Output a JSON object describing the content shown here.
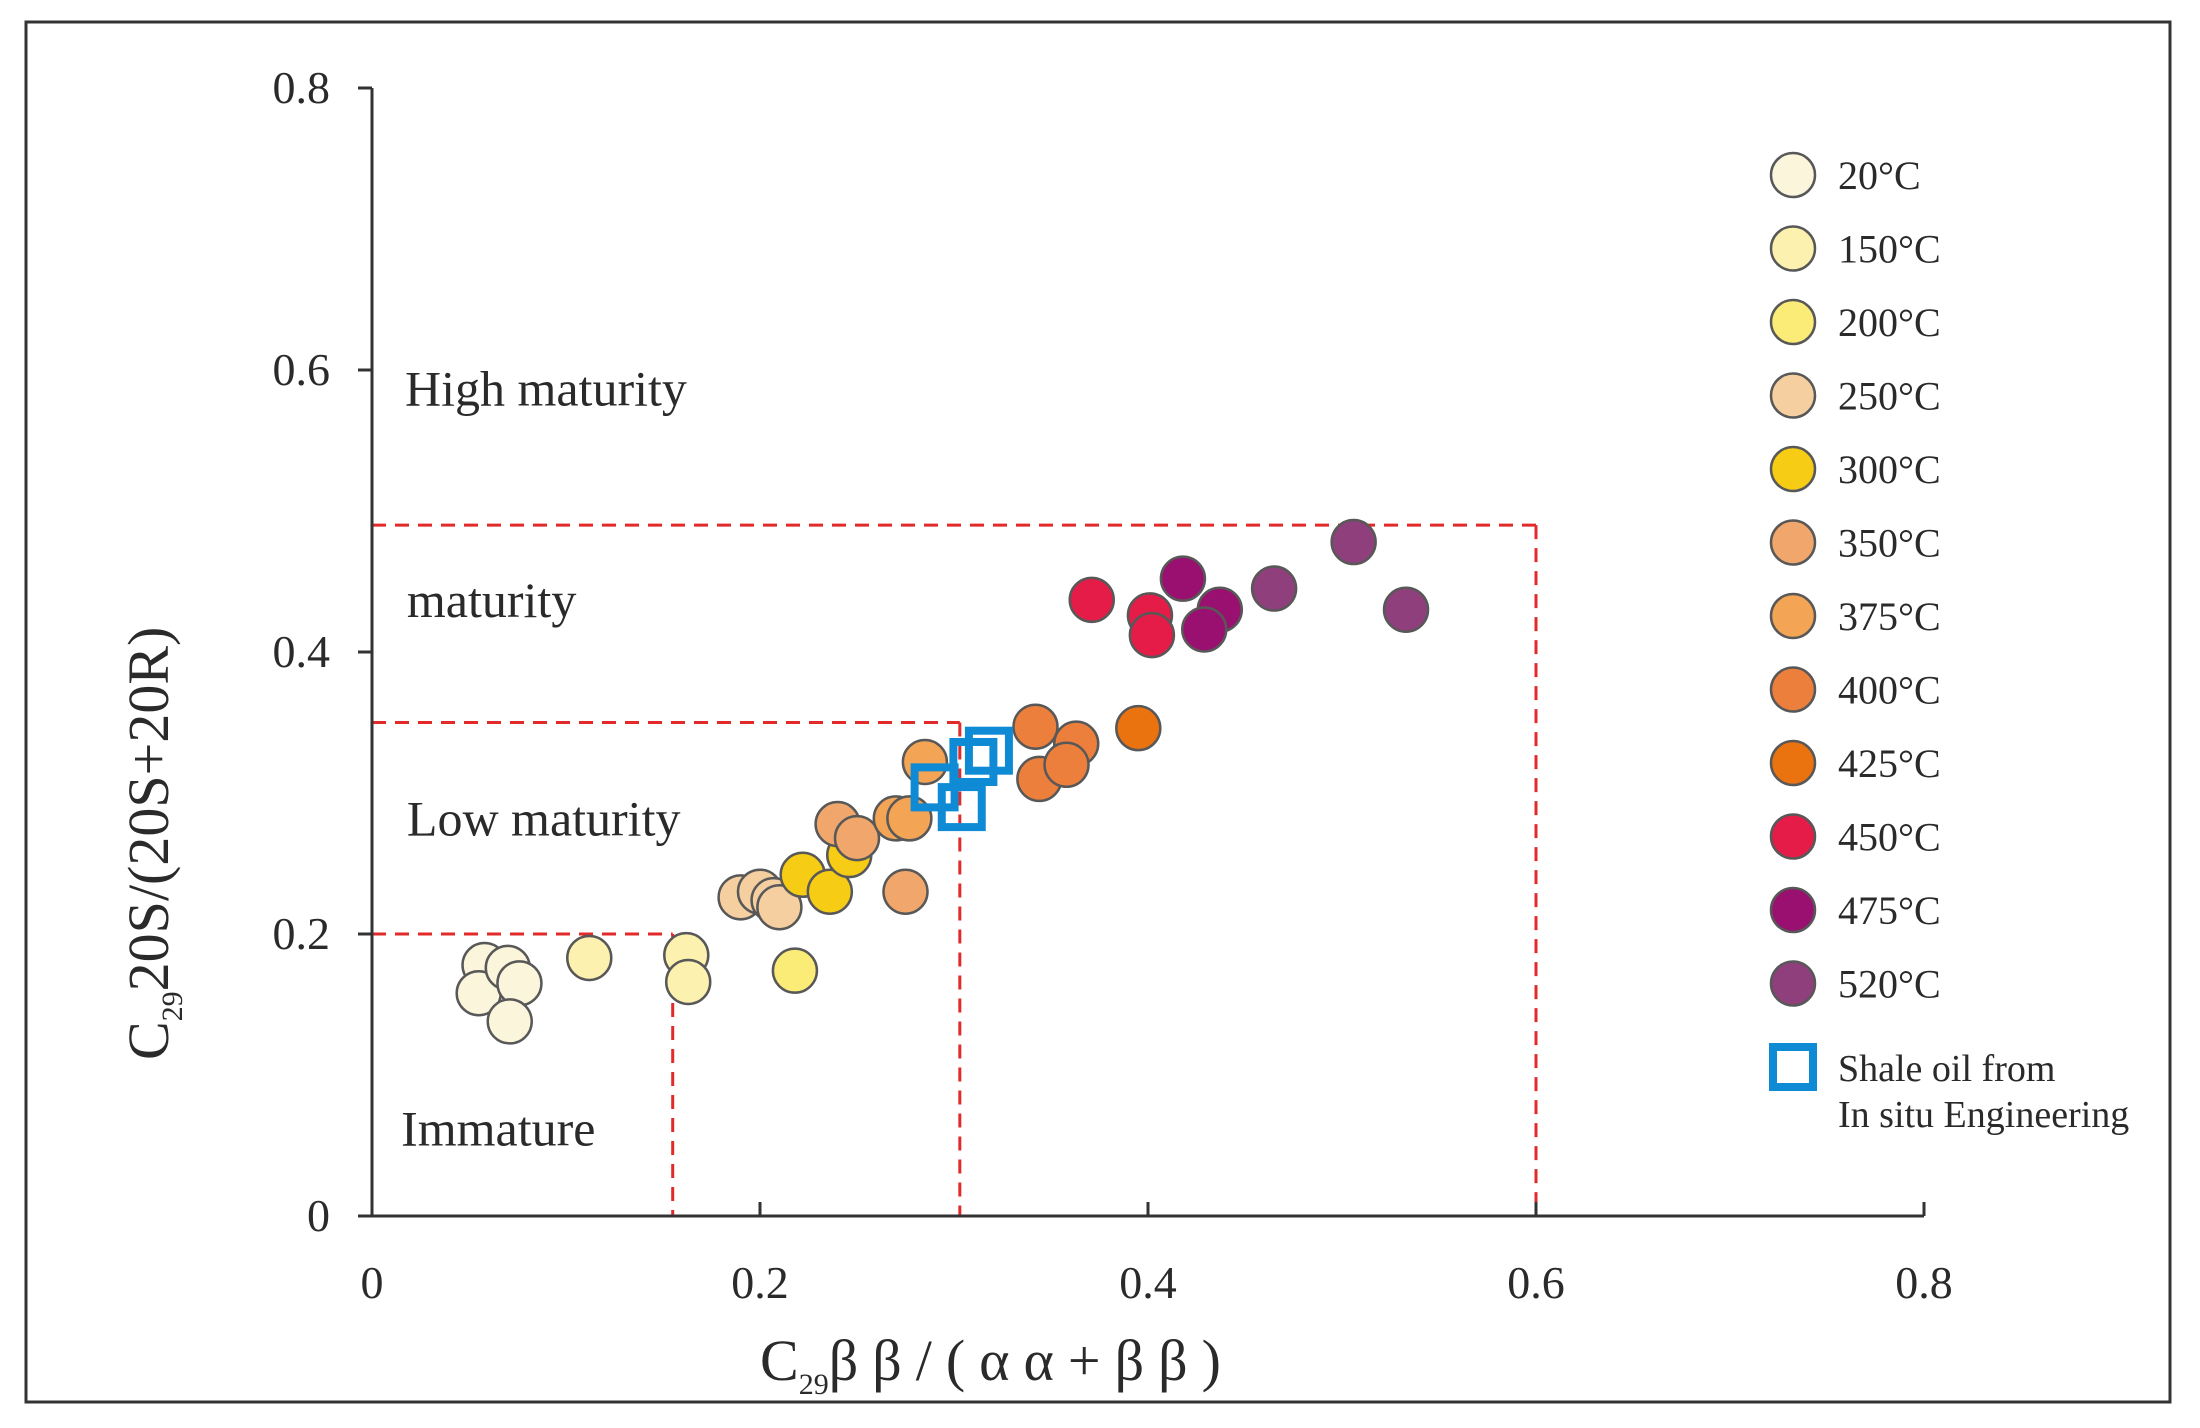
{
  "chart_data": {
    "type": "scatter",
    "title": "",
    "xlabel": {
      "prefix": "C",
      "sub": "29",
      "rest": "ββ/(αα+ββ)"
    },
    "ylabel": {
      "prefix": "C",
      "sub": "29",
      "rest": "20S/(20S+20R)"
    },
    "xlim": [
      0,
      0.8
    ],
    "ylim": [
      0,
      0.8
    ],
    "x_ticks": [
      0,
      0.2,
      0.4,
      0.6,
      0.8
    ],
    "x_tick_labels": [
      "0",
      "0.2",
      "0.4",
      "0.6",
      "0.8"
    ],
    "y_ticks": [
      0,
      0.2,
      0.4,
      0.6,
      0.8
    ],
    "y_tick_labels": [
      "0",
      "0.2",
      "0.4",
      "0.6",
      "0.8"
    ],
    "grid": false,
    "legend_position": "right",
    "zones": [
      {
        "name": "Immature",
        "label": "Immature",
        "label_at": [
          0.015,
          0.05
        ]
      },
      {
        "name": "Low maturity",
        "label": "Low maturity",
        "label_at": [
          0.018,
          0.27
        ]
      },
      {
        "name": "maturity",
        "label": "maturity",
        "label_at": [
          0.018,
          0.425
        ]
      },
      {
        "name": "High maturity",
        "label": "High maturity",
        "label_at": [
          0.017,
          0.575
        ]
      }
    ],
    "boundaries": [
      {
        "from": [
          0,
          0.2
        ],
        "to": [
          0.155,
          0.2
        ]
      },
      {
        "from": [
          0.155,
          0.2
        ],
        "to": [
          0.155,
          0
        ]
      },
      {
        "from": [
          0,
          0.35
        ],
        "to": [
          0.303,
          0.35
        ]
      },
      {
        "from": [
          0.303,
          0.35
        ],
        "to": [
          0.303,
          0
        ]
      },
      {
        "from": [
          0,
          0.49
        ],
        "to": [
          0.6,
          0.49
        ]
      },
      {
        "from": [
          0.6,
          0.49
        ],
        "to": [
          0.6,
          0
        ]
      }
    ],
    "series": [
      {
        "name": "20°C",
        "color": "#fbf5dc",
        "points": [
          [
            0.058,
            0.178
          ],
          [
            0.055,
            0.158
          ],
          [
            0.07,
            0.176
          ],
          [
            0.076,
            0.165
          ],
          [
            0.071,
            0.138
          ]
        ]
      },
      {
        "name": "150°C",
        "color": "#fcf1ae",
        "points": [
          [
            0.112,
            0.183
          ],
          [
            0.162,
            0.185
          ],
          [
            0.163,
            0.166
          ]
        ]
      },
      {
        "name": "200°C",
        "color": "#fbec78",
        "points": [
          [
            0.218,
            0.174
          ]
        ]
      },
      {
        "name": "250°C",
        "color": "#f6cfa1",
        "points": [
          [
            0.19,
            0.226
          ],
          [
            0.2,
            0.23
          ],
          [
            0.207,
            0.224
          ],
          [
            0.21,
            0.219
          ]
        ]
      },
      {
        "name": "300°C",
        "color": "#f6cd14",
        "points": [
          [
            0.222,
            0.242
          ],
          [
            0.236,
            0.23
          ],
          [
            0.246,
            0.256
          ]
        ]
      },
      {
        "name": "350°C",
        "color": "#f1a76c",
        "points": [
          [
            0.24,
            0.278
          ],
          [
            0.25,
            0.268
          ],
          [
            0.275,
            0.23
          ]
        ]
      },
      {
        "name": "375°C",
        "color": "#f4a455",
        "points": [
          [
            0.27,
            0.282
          ],
          [
            0.277,
            0.282
          ],
          [
            0.285,
            0.322
          ]
        ]
      },
      {
        "name": "400°C",
        "color": "#ec7f3c",
        "points": [
          [
            0.342,
            0.347
          ],
          [
            0.363,
            0.335
          ],
          [
            0.344,
            0.31
          ],
          [
            0.358,
            0.32
          ]
        ]
      },
      {
        "name": "425°C",
        "color": "#ea7310",
        "points": [
          [
            0.395,
            0.346
          ]
        ]
      },
      {
        "name": "450°C",
        "color": "#e51c48",
        "points": [
          [
            0.371,
            0.437
          ],
          [
            0.401,
            0.426
          ],
          [
            0.402,
            0.412
          ]
        ]
      },
      {
        "name": "475°C",
        "color": "#9a1070",
        "points": [
          [
            0.418,
            0.452
          ],
          [
            0.437,
            0.43
          ],
          [
            0.429,
            0.416
          ]
        ]
      },
      {
        "name": "520°C",
        "color": "#8f3f7c",
        "points": [
          [
            0.465,
            0.445
          ],
          [
            0.506,
            0.478
          ],
          [
            0.533,
            0.43
          ]
        ]
      }
    ],
    "shale_oil": {
      "name": "Shale oil from In situ Engineering",
      "label_lines": [
        "Shale oil from",
        "In situ Engineering"
      ],
      "color": "#0f8ad4",
      "points": [
        [
          0.29,
          0.304
        ],
        [
          0.304,
          0.29
        ],
        [
          0.31,
          0.322
        ],
        [
          0.318,
          0.33
        ]
      ]
    }
  }
}
